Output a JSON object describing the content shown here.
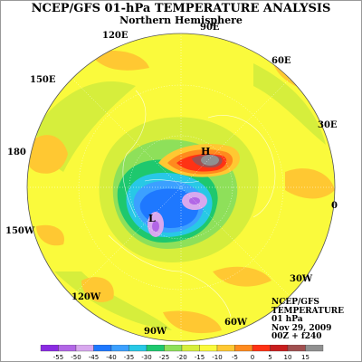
{
  "title": "NCEP/GFS 01-hPa TEMPERATURE ANALYSIS",
  "subtitle": "Northern Hemisphere",
  "longitude_labels": [
    "90E",
    "120E",
    "60E",
    "150E",
    "30E",
    "180",
    "0",
    "150W",
    "30W",
    "120W",
    "60W",
    "90W"
  ],
  "pressure_labels": {
    "high": "H",
    "low": "L"
  },
  "info_block": [
    "NCEP/GFS",
    "TEMPERATURE",
    "01 hPa",
    "Nov 29, 2009",
    "00Z + f240"
  ],
  "colorbar": {
    "ticks": [
      "-55",
      "-50",
      "-45",
      "-40",
      "-35",
      "-30",
      "-25",
      "-20",
      "-15",
      "-10",
      "-5",
      "0",
      "5",
      "10",
      "15"
    ],
    "colors": [
      "#8a2be2",
      "#b266e6",
      "#d8a8ee",
      "#1e78ff",
      "#3ca0ff",
      "#28c8e6",
      "#1ec86e",
      "#8ee05a",
      "#d6ee3c",
      "#fafa3c",
      "#ffc832",
      "#ff8a1e",
      "#ff3214",
      "#c81e1e",
      "#a05050",
      "#909090"
    ]
  }
}
